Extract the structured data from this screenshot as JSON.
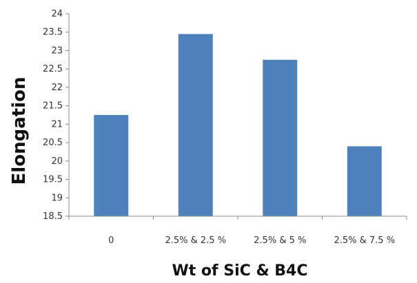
{
  "chart_data": {
    "type": "bar",
    "title": "",
    "categories": [
      "0",
      "2.5% & 2.5 %",
      "2.5% & 5 %",
      "2.5% & 7.5 %"
    ],
    "values": [
      21.25,
      23.45,
      22.75,
      20.4
    ],
    "ylim": [
      18.5,
      24
    ],
    "yticks": [
      "18.5",
      "19",
      "19.5",
      "20",
      "20.5",
      "21",
      "21.5",
      "22",
      "22.5",
      "23",
      "23.5",
      "24"
    ],
    "xlabel": "Wt of SiC & B4C",
    "ylabel": "Elongation",
    "grid": false,
    "legend": "none",
    "bar_color": "#4f81bd",
    "axis_color": "#8c8c8c"
  }
}
